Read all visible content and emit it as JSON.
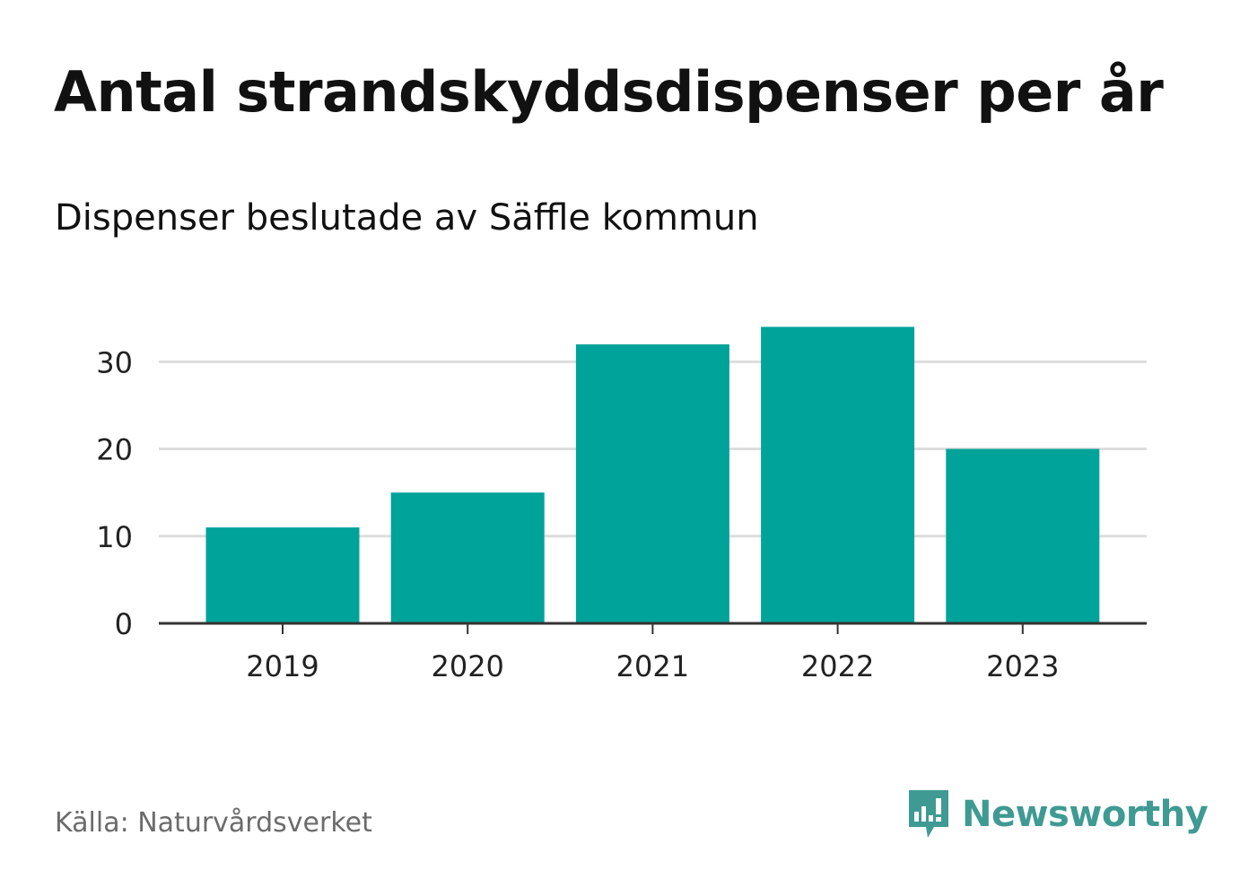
{
  "header": {
    "title": "Antal strandskyddsdispenser per år",
    "subtitle": "Dispenser beslutade av Säffle kommun"
  },
  "footer": {
    "source": "Källa: Naturvårdsverket",
    "brand": "Newsworthy",
    "brand_icon": "bar-chart-speech-bubble-icon"
  },
  "colors": {
    "bar": "#00a39a",
    "grid": "#dddddd",
    "axis": "#333333",
    "brand": "#3f9a93"
  },
  "chart_data": {
    "type": "bar",
    "title": "Antal strandskyddsdispenser per år",
    "subtitle": "Dispenser beslutade av Säffle kommun",
    "categories": [
      "2019",
      "2020",
      "2021",
      "2022",
      "2023"
    ],
    "values": [
      11,
      15,
      32,
      34,
      20
    ],
    "xlabel": "",
    "ylabel": "",
    "ylim": [
      0,
      36
    ],
    "yticks": [
      0,
      10,
      20,
      30
    ],
    "grid": true,
    "legend": "none"
  }
}
